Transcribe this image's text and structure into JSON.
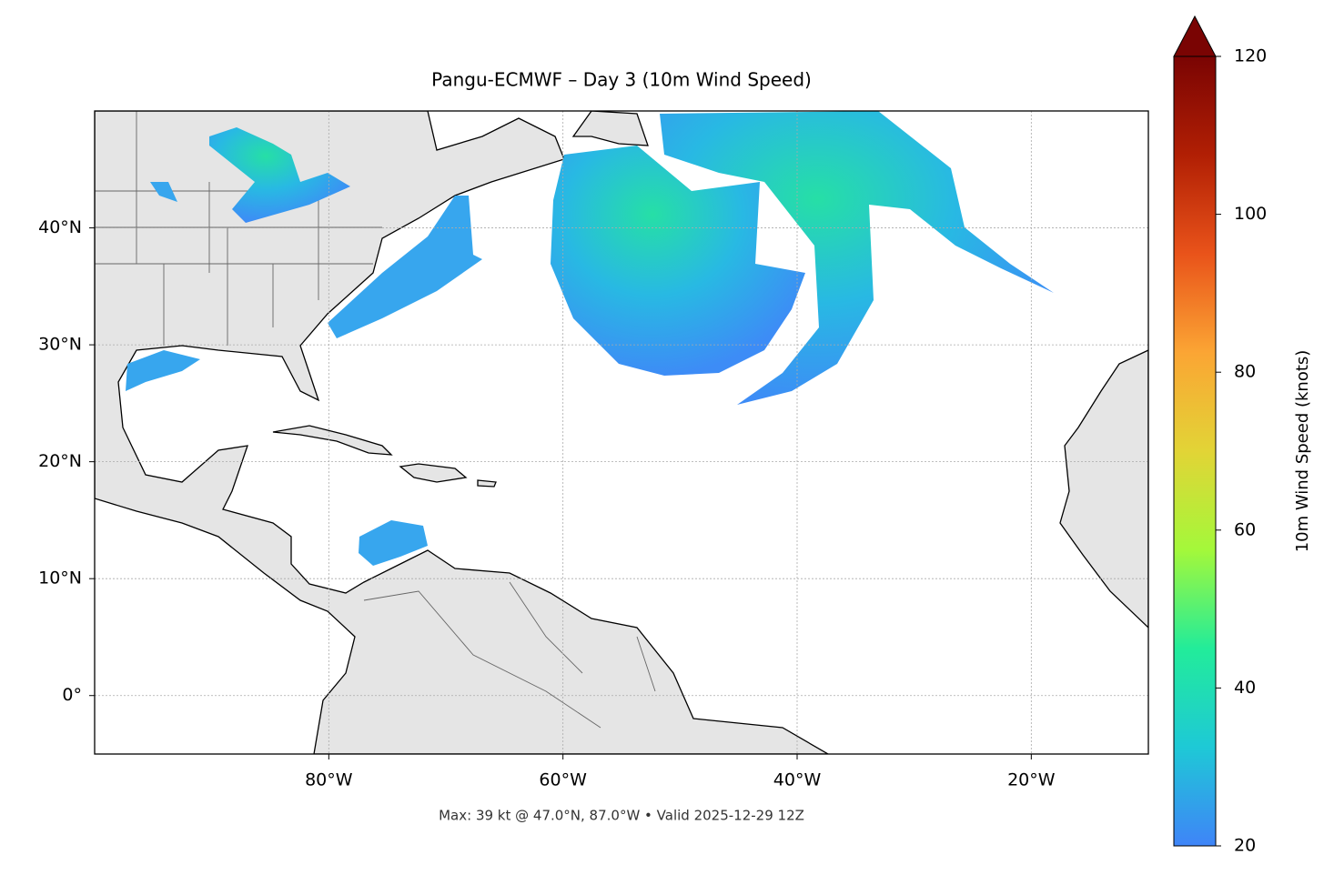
{
  "chart_data": {
    "type": "map",
    "title": "Pangu-ECMWF – Day 3 (10m Wind Speed)",
    "annotation": "Max: 39 kt @ 47.0°N, 87.0°W • Valid 2025-12-29 12Z",
    "xlim": [
      -100,
      -10
    ],
    "ylim": [
      -5,
      50
    ],
    "xticks": [
      {
        "value": -80,
        "label": "80°W"
      },
      {
        "value": -60,
        "label": "60°W"
      },
      {
        "value": -40,
        "label": "40°W"
      },
      {
        "value": -20,
        "label": "20°W"
      }
    ],
    "yticks": [
      {
        "value": 0,
        "label": "0°"
      },
      {
        "value": 10,
        "label": "10°N"
      },
      {
        "value": 20,
        "label": "20°N"
      },
      {
        "value": 30,
        "label": "30°N"
      },
      {
        "value": 40,
        "label": "40°N"
      }
    ],
    "grid": true,
    "colorbar": {
      "label": "10m Wind Speed (knots)",
      "lim": [
        20,
        120
      ],
      "ticks": [
        20,
        40,
        60,
        80,
        100,
        120
      ],
      "colors": [
        "#3f84f8",
        "#1ec9d6",
        "#22ec9a",
        "#a4f83a",
        "#e2d436",
        "#fba534",
        "#e9531a",
        "#b11f04",
        "#7a0403"
      ]
    }
  }
}
